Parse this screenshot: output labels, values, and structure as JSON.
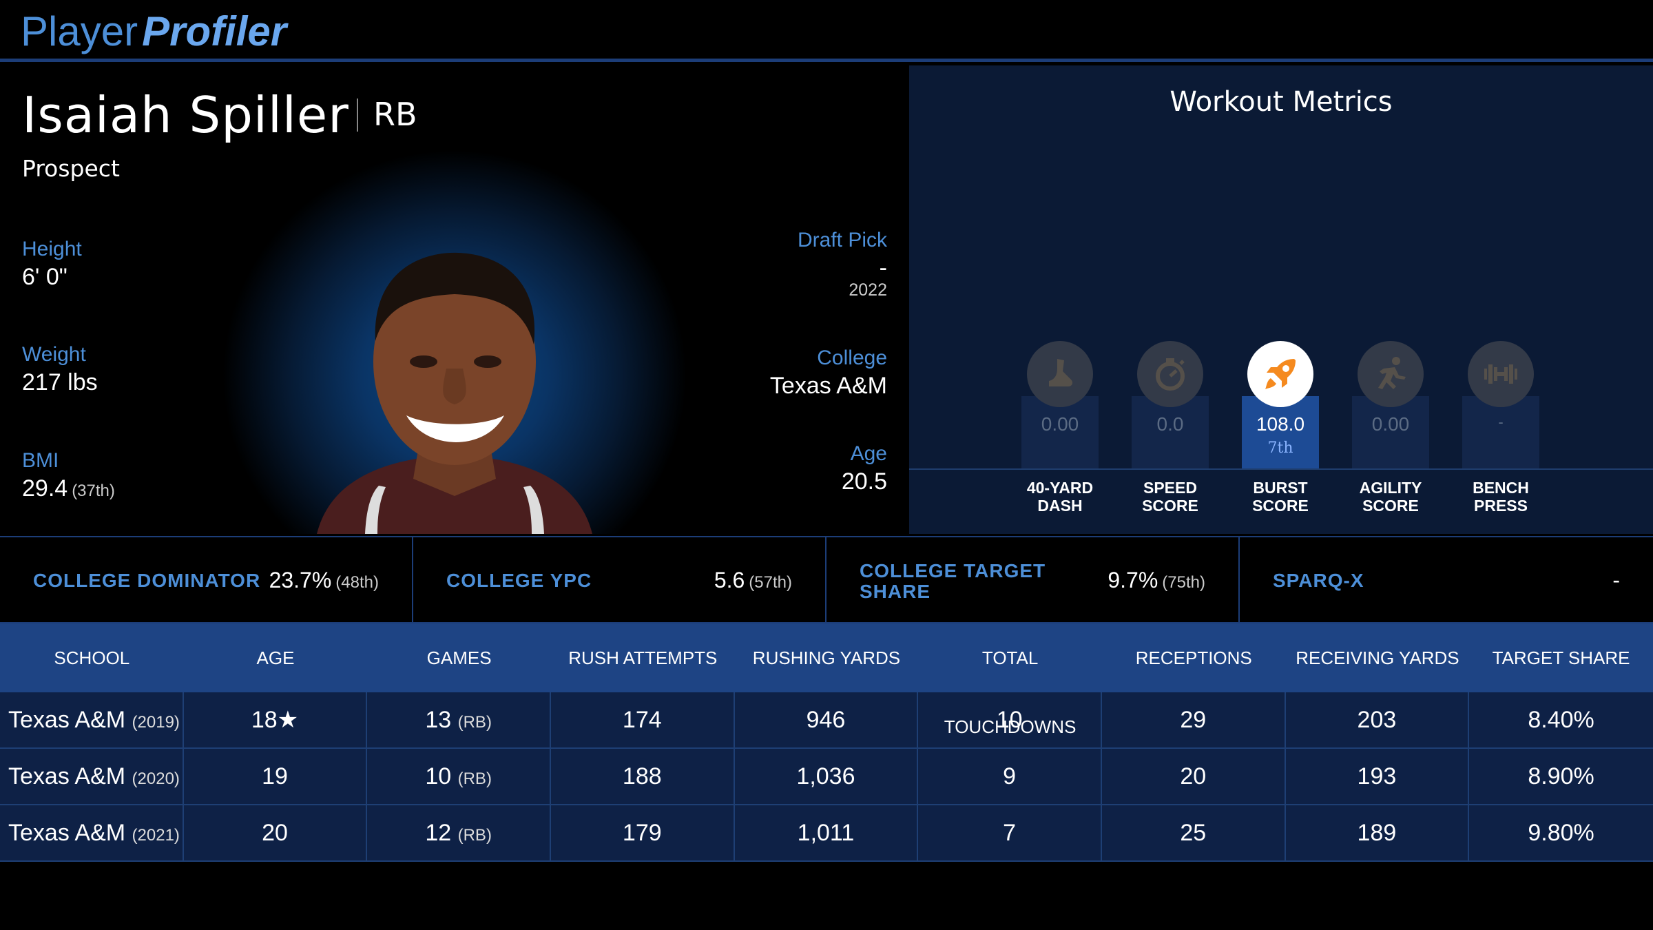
{
  "brand": {
    "part1": "Player",
    "part2": "Profiler"
  },
  "player": {
    "name": "Isaiah Spiller",
    "position": "RB",
    "status": "Prospect"
  },
  "bio": {
    "height_label": "Height",
    "height_value": "6' 0\"",
    "weight_label": "Weight",
    "weight_value": "217 lbs",
    "bmi_label": "BMI",
    "bmi_value": "29.4",
    "bmi_rank": "(37th)",
    "draft_label": "Draft Pick",
    "draft_value": "-",
    "draft_year": "2022",
    "college_label": "College",
    "college_value": "Texas A&M",
    "age_label": "Age",
    "age_value": "20.5"
  },
  "workout": {
    "title": "Workout Metrics",
    "metrics": [
      {
        "label1": "40-YARD",
        "label2": "DASH",
        "value": "0.00",
        "icon": "running-shoe-icon"
      },
      {
        "label1": "SPEED",
        "label2": "SCORE",
        "value": "0.0",
        "icon": "stopwatch-icon"
      },
      {
        "label1": "BURST",
        "label2": "SCORE",
        "value": "108.0",
        "rank": "7th",
        "icon": "rocket-icon"
      },
      {
        "label1": "AGILITY",
        "label2": "SCORE",
        "value": "0.00",
        "icon": "running-person-icon"
      },
      {
        "label1": "BENCH",
        "label2": "PRESS",
        "value": "-",
        "icon": "dumbbell-icon"
      }
    ],
    "accent": "#f58a1f"
  },
  "stats": [
    {
      "label": "COLLEGE DOMINATOR",
      "value": "23.7%",
      "rank": "(48th)"
    },
    {
      "label": "COLLEGE YPC",
      "value": "5.6",
      "rank": "(57th)"
    },
    {
      "label_line1": "COLLEGE TARGET",
      "label_line2": "SHARE",
      "value": "9.7%",
      "rank": "(75th)"
    },
    {
      "label": "SPARQ-X",
      "value": "-"
    }
  ],
  "table": {
    "headers": [
      "SCHOOL",
      "AGE",
      "GAMES",
      "RUSH ATTEMPTS",
      "RUSHING YARDS",
      "TOTAL TOUCHDOWNS",
      "RECEPTIONS",
      "RECEIVING YARDS",
      "TARGET SHARE"
    ],
    "rows": [
      {
        "school": "Texas A&M",
        "year": "(2019)",
        "age": "18★",
        "games": "13",
        "games_pos": "(RB)",
        "rush_att": "174",
        "rush_yds": "946",
        "td": "10",
        "rec": "29",
        "rec_yds": "203",
        "target_share": "8.40%"
      },
      {
        "school": "Texas A&M",
        "year": "(2020)",
        "age": "19",
        "games": "10",
        "games_pos": "(RB)",
        "rush_att": "188",
        "rush_yds": "1,036",
        "td": "9",
        "rec": "20",
        "rec_yds": "193",
        "target_share": "8.90%"
      },
      {
        "school": "Texas A&M",
        "year": "(2021)",
        "age": "20",
        "games": "12",
        "games_pos": "(RB)",
        "rush_att": "179",
        "rush_yds": "1,011",
        "td": "7",
        "rec": "25",
        "rec_yds": "189",
        "target_share": "9.80%"
      }
    ]
  }
}
